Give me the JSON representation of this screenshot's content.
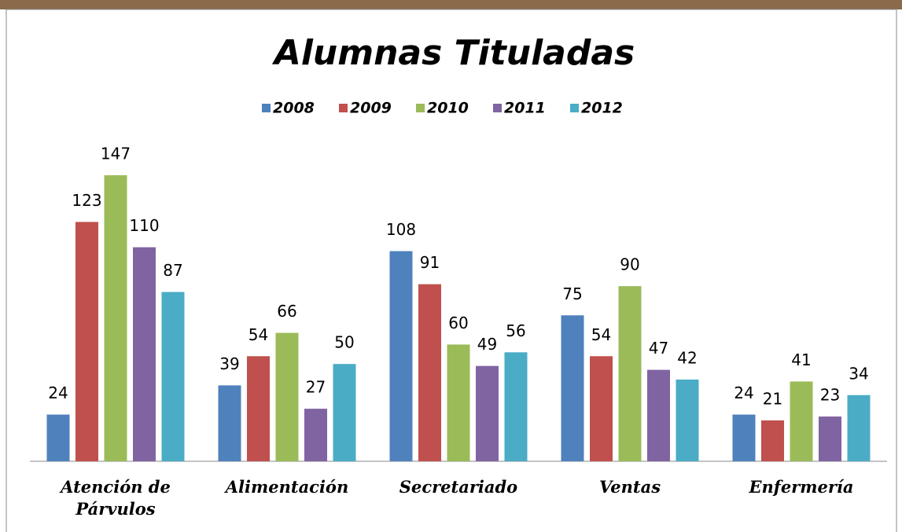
{
  "chart_data": {
    "type": "bar",
    "title": "Alumnas Tituladas",
    "categories": [
      "Atención de Párvulos",
      "Alimentación",
      "Secretariado",
      "Ventas",
      "Enfermería"
    ],
    "series": [
      {
        "name": "2008",
        "color": "#4f81bd",
        "values": [
          24,
          39,
          108,
          75,
          24
        ]
      },
      {
        "name": "2009",
        "color": "#c0504d",
        "values": [
          123,
          54,
          91,
          54,
          21
        ]
      },
      {
        "name": "2010",
        "color": "#9bbb59",
        "values": [
          147,
          66,
          60,
          90,
          41
        ]
      },
      {
        "name": "2011",
        "color": "#8064a2",
        "values": [
          110,
          27,
          49,
          47,
          23
        ]
      },
      {
        "name": "2012",
        "color": "#4bacc6",
        "values": [
          87,
          50,
          56,
          42,
          34
        ]
      }
    ],
    "legend": "top"
  }
}
